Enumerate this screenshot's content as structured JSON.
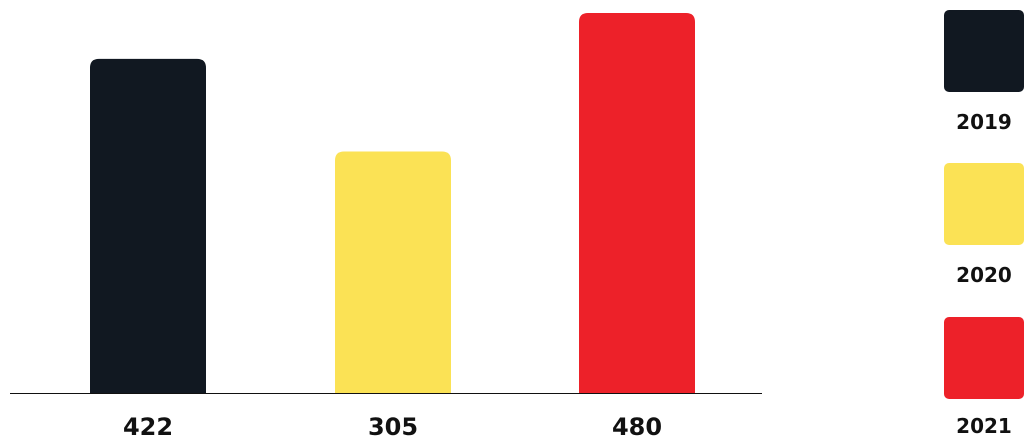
{
  "chart_data": {
    "type": "bar",
    "title": "",
    "xlabel": "",
    "ylabel": "",
    "categories": [
      "2019",
      "2020",
      "2021"
    ],
    "values": [
      422,
      305,
      480
    ],
    "value_labels": [
      "422",
      "305",
      "480"
    ],
    "colors": [
      "#111821",
      "#FBE255",
      "#ED2129"
    ],
    "grid": false,
    "legend": {
      "position": "right",
      "entries": [
        "2019",
        "2020",
        "2021"
      ]
    }
  }
}
